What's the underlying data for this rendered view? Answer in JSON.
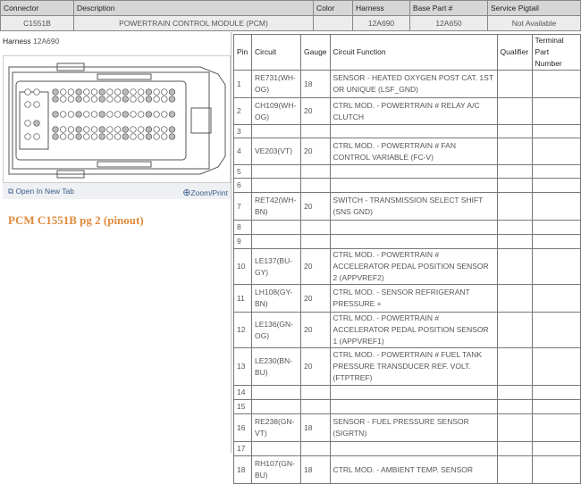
{
  "connector_header": {
    "columns": [
      "Connector",
      "Description",
      "Color",
      "Harness",
      "Base Part #",
      "Service Pigtail"
    ],
    "values": [
      "C1551B",
      "POWERTRAIN CONTROL MODULE (PCM)",
      "",
      "12A690",
      "12A650",
      "Not Available"
    ]
  },
  "left": {
    "harness_label": "Harness",
    "harness_value": "12A690",
    "open_new_tab": "Open In New Tab",
    "zoom_print": "Zoom/Print",
    "title": "PCM C1551B pg 2 (pinout)",
    "accent": "#e08a3c"
  },
  "pinout": {
    "columns": [
      "Pin",
      "Circuit",
      "Gauge",
      "Circuit Function",
      "Qualifier",
      "Terminal Part Number"
    ],
    "rows": [
      {
        "pin": "1",
        "circuit": "RE731(WH-OG)",
        "gauge": "18",
        "function": "SENSOR - HEATED OXYGEN POST CAT. 1ST OR UNIQUE (LSF_GND)"
      },
      {
        "pin": "2",
        "circuit": "CH109(WH-OG)",
        "gauge": "20",
        "function": "CTRL MOD. - POWERTRAIN # RELAY A/C CLUTCH"
      },
      {
        "pin": "3",
        "circuit": "",
        "gauge": "",
        "function": ""
      },
      {
        "pin": "4",
        "circuit": "VE203(VT)",
        "gauge": "20",
        "function": "CTRL MOD. - POWERTRAIN # FAN CONTROL VARIABLE (FC-V)"
      },
      {
        "pin": "5",
        "circuit": "",
        "gauge": "",
        "function": ""
      },
      {
        "pin": "6",
        "circuit": "",
        "gauge": "",
        "function": ""
      },
      {
        "pin": "7",
        "circuit": "RET42(WH-BN)",
        "gauge": "20",
        "function": "SWITCH - TRANSMISSION SELECT SHIFT (SNS GND)"
      },
      {
        "pin": "8",
        "circuit": "",
        "gauge": "",
        "function": ""
      },
      {
        "pin": "9",
        "circuit": "",
        "gauge": "",
        "function": ""
      },
      {
        "pin": "10",
        "circuit": "LE137(BU-GY)",
        "gauge": "20",
        "function": "CTRL MOD. - POWERTRAIN # ACCELERATOR PEDAL POSITION SENSOR 2 (APPVREF2)"
      },
      {
        "pin": "11",
        "circuit": "LH108(GY-BN)",
        "gauge": "20",
        "function": "CTRL MOD. - SENSOR REFRIGERANT PRESSURE +"
      },
      {
        "pin": "12",
        "circuit": "LE136(GN-OG)",
        "gauge": "20",
        "function": "CTRL MOD. - POWERTRAIN # ACCELERATOR PEDAL POSITION SENSOR 1 (APPVREF1)"
      },
      {
        "pin": "13",
        "circuit": "LE230(BN-BU)",
        "gauge": "20",
        "function": "CTRL MOD. - POWERTRAIN # FUEL TANK PRESSURE TRANSDUCER REF. VOLT. (FTPTREF)"
      },
      {
        "pin": "14",
        "circuit": "",
        "gauge": "",
        "function": ""
      },
      {
        "pin": "15",
        "circuit": "",
        "gauge": "",
        "function": ""
      },
      {
        "pin": "16",
        "circuit": "RE238(GN-VT)",
        "gauge": "18",
        "function": "SENSOR - FUEL PRESSURE SENSOR (SIGRTN)"
      },
      {
        "pin": "17",
        "circuit": "",
        "gauge": "",
        "function": ""
      },
      {
        "pin": "18",
        "circuit": "RH107(GN-BU)",
        "gauge": "18",
        "function": "CTRL MOD. - AMBIENT TEMP. SENSOR"
      }
    ]
  }
}
